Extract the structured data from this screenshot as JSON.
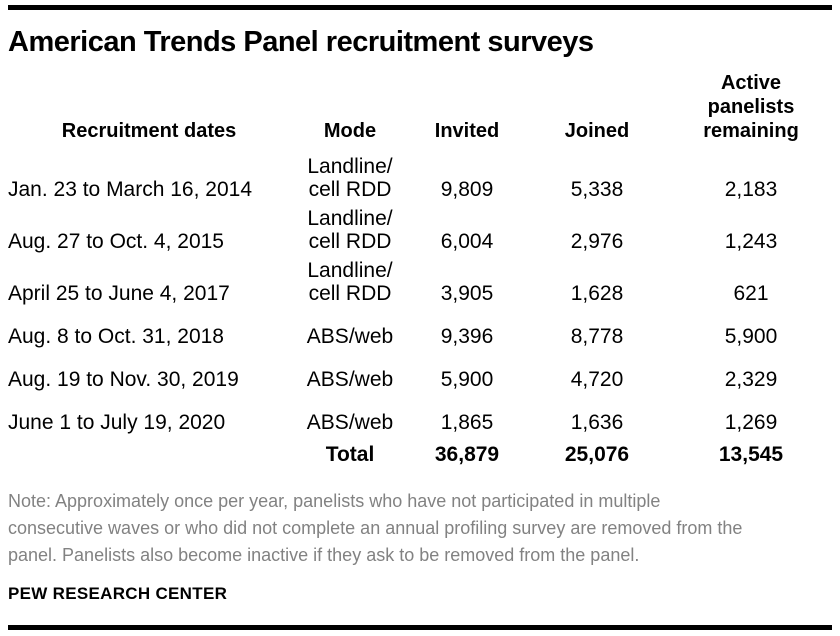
{
  "title": "American Trends Panel recruitment surveys",
  "table": {
    "headers": {
      "dates": "Recruitment dates",
      "mode": "Mode",
      "invited": "Invited",
      "joined": "Joined",
      "remaining": "Active\npanelists\nremaining"
    },
    "rows": [
      {
        "dates": "Jan. 23 to March 16, 2014",
        "mode": "Landline/\ncell RDD",
        "invited": "9,809",
        "joined": "5,338",
        "remaining": "2,183"
      },
      {
        "dates": "Aug. 27 to Oct. 4, 2015",
        "mode": "Landline/\ncell RDD",
        "invited": "6,004",
        "joined": "2,976",
        "remaining": "1,243"
      },
      {
        "dates": "April 25 to June 4, 2017",
        "mode": "Landline/\ncell RDD",
        "invited": "3,905",
        "joined": "1,628",
        "remaining": "621"
      },
      {
        "dates": "Aug. 8 to Oct. 31, 2018",
        "mode": "ABS/web",
        "invited": "9,396",
        "joined": "8,778",
        "remaining": "5,900"
      },
      {
        "dates": "Aug. 19 to Nov. 30, 2019",
        "mode": "ABS/web",
        "invited": "5,900",
        "joined": "4,720",
        "remaining": "2,329"
      },
      {
        "dates": "June 1 to July 19, 2020",
        "mode": "ABS/web",
        "invited": "1,865",
        "joined": "1,636",
        "remaining": "1,269"
      }
    ],
    "total": {
      "label": "Total",
      "invited": "36,879",
      "joined": "25,076",
      "remaining": "13,545"
    }
  },
  "note": "Note: Approximately once per year, panelists who have not participated in multiple\nconsecutive waves or who did not complete an annual profiling survey are removed from the\npanel. Panelists also become inactive if they ask to be removed from the panel.",
  "source": "PEW RESEARCH CENTER",
  "colors": {
    "text": "#000000",
    "note_text": "#828282",
    "rule": "#000000",
    "background": "#ffffff"
  },
  "chart_data": {
    "type": "table",
    "title": "American Trends Panel recruitment surveys",
    "columns": [
      "Recruitment dates",
      "Mode",
      "Invited",
      "Joined",
      "Active panelists remaining"
    ],
    "rows": [
      [
        "Jan. 23 to March 16, 2014",
        "Landline/cell RDD",
        9809,
        5338,
        2183
      ],
      [
        "Aug. 27 to Oct. 4, 2015",
        "Landline/cell RDD",
        6004,
        2976,
        1243
      ],
      [
        "April 25 to June 4, 2017",
        "Landline/cell RDD",
        3905,
        1628,
        621
      ],
      [
        "Aug. 8 to Oct. 31, 2018",
        "ABS/web",
        9396,
        8778,
        5900
      ],
      [
        "Aug. 19 to Nov. 30, 2019",
        "ABS/web",
        5900,
        4720,
        2329
      ],
      [
        "June 1 to July 19, 2020",
        "ABS/web",
        1865,
        1636,
        1269
      ]
    ],
    "total_row": [
      "",
      "Total",
      36879,
      25076,
      13545
    ],
    "note": "Note: Approximately once per year, panelists who have not participated in multiple consecutive waves or who did not complete an annual profiling survey are removed from the panel. Panelists also become inactive if they ask to be removed from the panel.",
    "source": "PEW RESEARCH CENTER"
  }
}
